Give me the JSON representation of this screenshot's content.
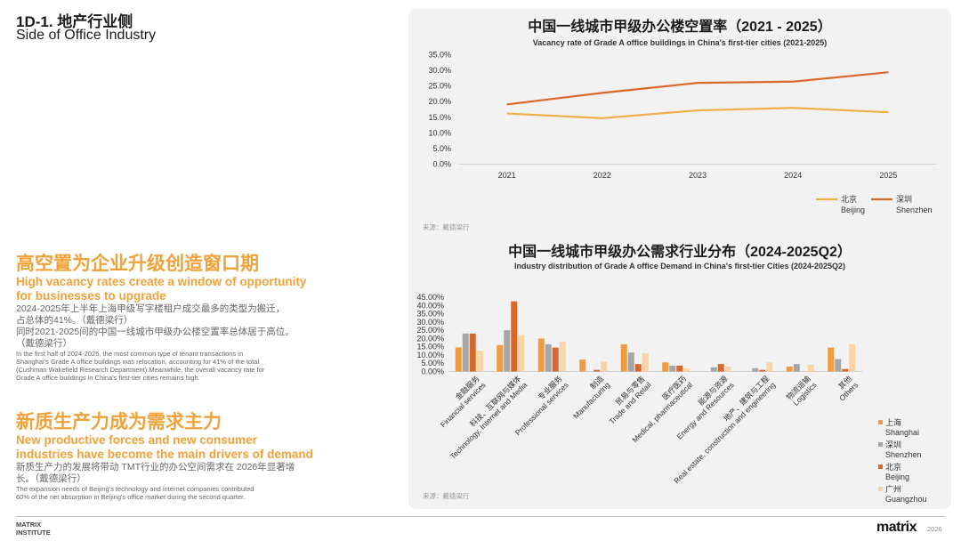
{
  "header": {
    "title_cn": "1D-1. 地产行业侧",
    "title_en": "Side of Office Industry"
  },
  "left": {
    "section1": {
      "heading_cn": "高空置为企业升级创造窗口期",
      "heading_en_1": "High vacancy rates create a window of opportunity",
      "heading_en_2": "for businesses to upgrade",
      "body_cn_1": "2024-2025年上半年上海甲级写字楼租户成交最多的类型为搬迁，",
      "body_cn_2": "占总体的41%。（戴德梁行）",
      "body_cn_3": "同时2021-2025间的中国一线城市甲级办公楼空置率总体居于高位。",
      "body_cn_4": "（戴德梁行）",
      "body_en_1": "In the first half of 2024-2025, the most common type of tenant transactions in",
      "body_en_2": "Shanghai's Grade A office buildings was relocation, accounting for 41% of the total",
      "body_en_3": "(Cushman Wakefield Research Department).Meanwhile, the overall vacancy rate for",
      "body_en_4": "Grade A office buildings in China's first-tier cities remains high."
    },
    "section2": {
      "heading_cn": "新质生产力成为需求主力",
      "heading_en_1": "New productive forces and new consumer",
      "heading_en_2": "industries have become the main drivers of demand",
      "body_cn_1": "新质生产力的发展将带动 TMT行业的办公空间需求在 2026年显著增",
      "body_cn_2": "长。（戴德梁行）",
      "body_en_1": "The expansion needs of Beijing's technology and internet companies contributed",
      "body_en_2": "60% of the net absorption in Beijing's office market during the second quarter."
    }
  },
  "footer": {
    "brand_1": "MATRIX",
    "brand_2": "INSTITUTE",
    "logo": "matrix",
    "year": "2026"
  },
  "colors": {
    "orange": "#f0a23a",
    "beijing": "#f2ae4b",
    "shenzhen": "#d96a2b",
    "shanghai": "#f09a42",
    "shenzhen_bar": "#a6a6a6",
    "beijing_bar": "#d8672a",
    "guangzhou": "#fad3a6"
  },
  "chart_data": [
    {
      "type": "line",
      "title": "中国一线城市甲级办公楼空置率（2021 - 2025）",
      "subtitle": "Vacancy rate of Grade A office buildings in China's first-tier cities (2021-2025)",
      "x": [
        "2021",
        "2022",
        "2023",
        "2024",
        "2025"
      ],
      "y_ticks": [
        "0.0%",
        "5.0%",
        "10.0%",
        "15.0%",
        "20.0%",
        "25.0%",
        "30.0%",
        "35.0%"
      ],
      "ylim": [
        0,
        35
      ],
      "series": [
        {
          "name_cn": "北京",
          "name_en": "Beijing",
          "values": [
            16.2,
            14.7,
            17.2,
            18.0,
            16.6
          ]
        },
        {
          "name_cn": "深圳",
          "name_en": "Shenzhen",
          "values": [
            19.1,
            22.8,
            26.0,
            26.4,
            29.4
          ]
        }
      ],
      "source": "来源：戴德梁行"
    },
    {
      "type": "bar",
      "title": "中国一线城市甲级办公需求行业分布（2024-2025Q2）",
      "subtitle": "Industry distribution of Grade A office Demand in China's first-tier Cities (2024-2025Q2)",
      "y_ticks": [
        "0.00%",
        "5.00%",
        "10.00%",
        "15.00%",
        "20.00%",
        "25.00%",
        "30.00%",
        "35.00%",
        "40.00%",
        "45.00%"
      ],
      "ylim": [
        0,
        45
      ],
      "categories": [
        {
          "cn": "金融服务",
          "en": "Financial services"
        },
        {
          "cn": "科技、互联网与媒体",
          "en": "Technology, Internet and Media"
        },
        {
          "cn": "专业服务",
          "en": "Professional services"
        },
        {
          "cn": "制造",
          "en": "Manufacturing"
        },
        {
          "cn": "贸易与零售",
          "en": "Trade and Retail"
        },
        {
          "cn": "医疗医药",
          "en": "Medical, pharmaceutical"
        },
        {
          "cn": "能源与资源",
          "en": "Energy and Resources"
        },
        {
          "cn": "地产、建筑与工程",
          "en": "Real estate, construction and engineering"
        },
        {
          "cn": "物流运输",
          "en": "Logistics"
        },
        {
          "cn": "其他",
          "en": "Others"
        }
      ],
      "series": [
        {
          "name_cn": "上海",
          "name_en": "Shanghai",
          "values": [
            14.6,
            16.0,
            20.0,
            7.2,
            16.5,
            5.5,
            0.0,
            0.0,
            3.0,
            14.5
          ]
        },
        {
          "name_cn": "深圳",
          "name_en": "Shenzhen",
          "values": [
            23.0,
            25.0,
            16.5,
            0.0,
            11.5,
            3.5,
            2.5,
            2.0,
            4.5,
            7.5
          ]
        },
        {
          "name_cn": "北京",
          "name_en": "Beijing",
          "values": [
            23.0,
            42.5,
            14.5,
            1.0,
            4.5,
            3.5,
            4.5,
            1.0,
            0.0,
            1.5
          ]
        },
        {
          "name_cn": "广州",
          "name_en": "Guangzhou",
          "values": [
            12.5,
            22.0,
            18.0,
            6.0,
            11.0,
            2.0,
            3.0,
            5.5,
            4.0,
            16.5
          ]
        }
      ],
      "source": "来源：戴德梁行"
    }
  ]
}
